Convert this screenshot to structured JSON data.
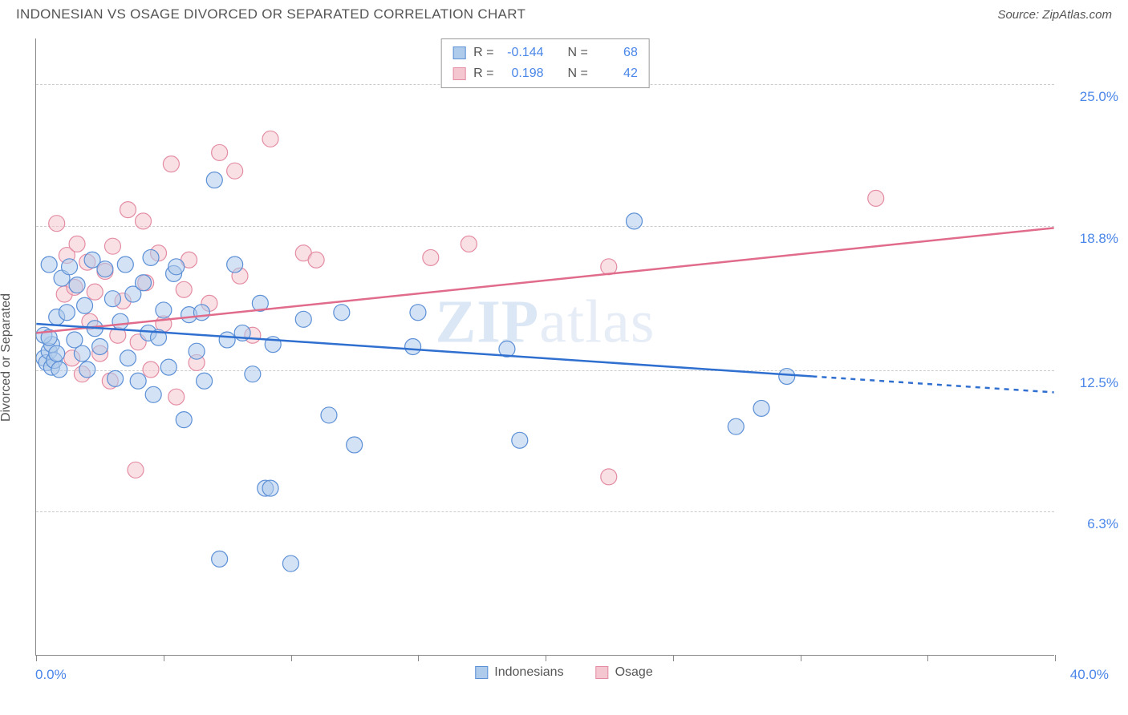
{
  "header": {
    "title": "INDONESIAN VS OSAGE DIVORCED OR SEPARATED CORRELATION CHART",
    "source": "Source: ZipAtlas.com"
  },
  "axes": {
    "y_label": "Divorced or Separated",
    "x_min_label": "0.0%",
    "x_max_label": "40.0%",
    "xlim": [
      0,
      40
    ],
    "ylim": [
      0,
      27
    ],
    "y_gridlines": [
      {
        "value": 25.0,
        "label": "25.0%"
      },
      {
        "value": 18.8,
        "label": "18.8%"
      },
      {
        "value": 12.5,
        "label": "12.5%"
      },
      {
        "value": 6.3,
        "label": "6.3%"
      }
    ],
    "x_ticks": [
      0,
      5,
      10,
      15,
      20,
      25,
      30,
      35,
      40
    ]
  },
  "colors": {
    "series1_fill": "#aecbeb",
    "series1_stroke": "#5b8fd6",
    "series2_fill": "#f4c6d0",
    "series2_stroke": "#e48ca3",
    "trend1": "#2f6fd0",
    "trend2": "#e06b8b",
    "axis_text": "#4a86e8",
    "grid": "#cccccc",
    "background": "#ffffff",
    "title_text": "#555555"
  },
  "marker": {
    "radius": 10,
    "opacity": 0.55
  },
  "stat_box": {
    "rows": [
      {
        "swatch": "series1",
        "r_label": "R =",
        "r": "-0.144",
        "n_label": "N =",
        "n": "68"
      },
      {
        "swatch": "series2",
        "r_label": "R =",
        "r": "0.198",
        "n_label": "N =",
        "n": "42"
      }
    ]
  },
  "bottom_legend": [
    {
      "swatch": "series1",
      "label": "Indonesians"
    },
    {
      "swatch": "series2",
      "label": "Osage"
    }
  ],
  "watermark": {
    "bold": "ZIP",
    "thin": "atlas"
  },
  "trend_lines": {
    "series1": {
      "x1": 0,
      "y1": 14.5,
      "x2": 30.5,
      "y2": 12.2,
      "x2_dash": 40,
      "y2_dash": 11.5
    },
    "series2": {
      "x1": 0,
      "y1": 14.1,
      "x2": 40,
      "y2": 18.7
    }
  },
  "series1_points": [
    [
      0.3,
      13.0
    ],
    [
      0.4,
      12.8
    ],
    [
      0.5,
      13.3
    ],
    [
      0.6,
      12.6
    ],
    [
      0.6,
      13.6
    ],
    [
      0.3,
      14.0
    ],
    [
      0.5,
      13.9
    ],
    [
      0.7,
      12.9
    ],
    [
      0.8,
      13.2
    ],
    [
      0.9,
      12.5
    ],
    [
      0.5,
      17.1
    ],
    [
      0.8,
      14.8
    ],
    [
      1.0,
      16.5
    ],
    [
      1.2,
      15.0
    ],
    [
      1.3,
      17.0
    ],
    [
      1.5,
      13.8
    ],
    [
      1.6,
      16.2
    ],
    [
      1.8,
      13.2
    ],
    [
      1.9,
      15.3
    ],
    [
      2.0,
      12.5
    ],
    [
      2.2,
      17.3
    ],
    [
      2.3,
      14.3
    ],
    [
      2.5,
      13.5
    ],
    [
      2.7,
      16.9
    ],
    [
      3.0,
      15.6
    ],
    [
      3.1,
      12.1
    ],
    [
      3.3,
      14.6
    ],
    [
      3.5,
      17.1
    ],
    [
      3.6,
      13.0
    ],
    [
      3.8,
      15.8
    ],
    [
      4.0,
      12.0
    ],
    [
      4.2,
      16.3
    ],
    [
      4.4,
      14.1
    ],
    [
      4.5,
      17.4
    ],
    [
      4.6,
      11.4
    ],
    [
      4.8,
      13.9
    ],
    [
      5.0,
      15.1
    ],
    [
      5.2,
      12.6
    ],
    [
      5.4,
      16.7
    ],
    [
      5.5,
      17.0
    ],
    [
      5.8,
      10.3
    ],
    [
      6.0,
      14.9
    ],
    [
      6.3,
      13.3
    ],
    [
      6.5,
      15.0
    ],
    [
      6.6,
      12.0
    ],
    [
      7.0,
      20.8
    ],
    [
      7.2,
      4.2
    ],
    [
      7.5,
      13.8
    ],
    [
      7.8,
      17.1
    ],
    [
      8.1,
      14.1
    ],
    [
      8.5,
      12.3
    ],
    [
      8.8,
      15.4
    ],
    [
      9.0,
      7.3
    ],
    [
      9.2,
      7.3
    ],
    [
      9.3,
      13.6
    ],
    [
      10.0,
      4.0
    ],
    [
      10.5,
      14.7
    ],
    [
      11.5,
      10.5
    ],
    [
      12.0,
      15.0
    ],
    [
      12.5,
      9.2
    ],
    [
      14.8,
      13.5
    ],
    [
      15.0,
      15.0
    ],
    [
      18.5,
      13.4
    ],
    [
      19.0,
      9.4
    ],
    [
      23.5,
      19.0
    ],
    [
      27.5,
      10.0
    ],
    [
      28.5,
      10.8
    ],
    [
      29.5,
      12.2
    ]
  ],
  "series2_points": [
    [
      0.8,
      18.9
    ],
    [
      1.1,
      15.8
    ],
    [
      1.2,
      17.5
    ],
    [
      1.4,
      13.0
    ],
    [
      1.5,
      16.1
    ],
    [
      1.6,
      18.0
    ],
    [
      1.8,
      12.3
    ],
    [
      2.0,
      17.2
    ],
    [
      2.1,
      14.6
    ],
    [
      2.3,
      15.9
    ],
    [
      2.5,
      13.2
    ],
    [
      2.7,
      16.8
    ],
    [
      2.9,
      12.0
    ],
    [
      3.0,
      17.9
    ],
    [
      3.2,
      14.0
    ],
    [
      3.4,
      15.5
    ],
    [
      3.6,
      19.5
    ],
    [
      3.9,
      8.1
    ],
    [
      4.0,
      13.7
    ],
    [
      4.3,
      16.3
    ],
    [
      4.5,
      12.5
    ],
    [
      4.8,
      17.6
    ],
    [
      5.0,
      14.5
    ],
    [
      5.3,
      21.5
    ],
    [
      5.5,
      11.3
    ],
    [
      5.8,
      16.0
    ],
    [
      6.0,
      17.3
    ],
    [
      6.3,
      12.8
    ],
    [
      6.8,
      15.4
    ],
    [
      7.2,
      22.0
    ],
    [
      7.8,
      21.2
    ],
    [
      8.0,
      16.6
    ],
    [
      8.5,
      14.0
    ],
    [
      9.2,
      22.6
    ],
    [
      10.5,
      17.6
    ],
    [
      11.0,
      17.3
    ],
    [
      15.5,
      17.4
    ],
    [
      17.0,
      18.0
    ],
    [
      22.5,
      17.0
    ],
    [
      22.5,
      7.8
    ],
    [
      33.0,
      20.0
    ],
    [
      4.2,
      19.0
    ]
  ]
}
